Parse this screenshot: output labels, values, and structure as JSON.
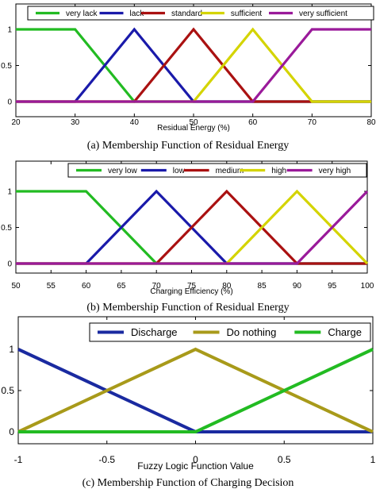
{
  "chart_data": [
    {
      "type": "line",
      "xlabel": "Residual Energy (%)",
      "caption": "(a) Membership Function of Residual Energy",
      "xlim": [
        20,
        80
      ],
      "ylim": [
        0,
        1
      ],
      "xticks": [
        "20",
        "30",
        "40",
        "50",
        "60",
        "70",
        "80"
      ],
      "yticks": [
        "0",
        "0.5",
        "1"
      ],
      "legend_position": "top",
      "series": [
        {
          "name": "very lack",
          "color": "#22bb22",
          "x": [
            20,
            30,
            40,
            80
          ],
          "y": [
            1,
            1,
            0,
            0
          ]
        },
        {
          "name": "lack",
          "color": "#1a1aaa",
          "x": [
            20,
            30,
            40,
            50,
            80
          ],
          "y": [
            0,
            0,
            1,
            0,
            0
          ]
        },
        {
          "name": "standard",
          "color": "#aa1111",
          "x": [
            20,
            40,
            50,
            60,
            80
          ],
          "y": [
            0,
            0,
            1,
            0,
            0
          ]
        },
        {
          "name": "sufficient",
          "color": "#d4d400",
          "x": [
            20,
            50,
            60,
            70,
            80
          ],
          "y": [
            0,
            0,
            1,
            0,
            0
          ]
        },
        {
          "name": "very sufficient",
          "color": "#9a1a9a",
          "x": [
            20,
            60,
            70,
            80
          ],
          "y": [
            0,
            0,
            1,
            1
          ]
        }
      ]
    },
    {
      "type": "line",
      "xlabel": "Charging Efficiency (%)",
      "caption": "(b) Membership Function of Residual Energy",
      "xlim": [
        50,
        100
      ],
      "ylim": [
        0,
        1
      ],
      "xticks": [
        "50",
        "55",
        "60",
        "65",
        "70",
        "75",
        "80",
        "85",
        "90",
        "95",
        "100"
      ],
      "yticks": [
        "0",
        "0.5",
        "1"
      ],
      "legend_position": "top",
      "series": [
        {
          "name": "very low",
          "color": "#22bb22",
          "x": [
            50,
            60,
            70,
            100
          ],
          "y": [
            1,
            1,
            0,
            0
          ]
        },
        {
          "name": "low",
          "color": "#1a1aaa",
          "x": [
            50,
            60,
            70,
            80,
            100
          ],
          "y": [
            0,
            0,
            1,
            0,
            0
          ]
        },
        {
          "name": "medium",
          "color": "#aa1111",
          "x": [
            50,
            70,
            80,
            90,
            100
          ],
          "y": [
            0,
            0,
            1,
            0,
            0
          ]
        },
        {
          "name": "high",
          "color": "#d4d400",
          "x": [
            50,
            80,
            90,
            100
          ],
          "y": [
            0,
            0,
            1,
            0
          ]
        },
        {
          "name": "very high",
          "color": "#9a1a9a",
          "x": [
            50,
            90,
            100
          ],
          "y": [
            0,
            0,
            1
          ]
        }
      ]
    },
    {
      "type": "line",
      "xlabel": "Fuzzy Logic Function Value",
      "caption": "(c) Membership Function of Charging Decision",
      "xlim": [
        -1,
        1
      ],
      "ylim": [
        0,
        1
      ],
      "xticks": [
        "-1",
        "-0.5",
        "0",
        "0.5",
        "1"
      ],
      "yticks": [
        "0",
        "0.5",
        "1"
      ],
      "legend_position": "top",
      "series": [
        {
          "name": "Discharge",
          "color": "#1a2aa0",
          "x": [
            -1,
            0,
            1
          ],
          "y": [
            1,
            0,
            0
          ]
        },
        {
          "name": "Do nothing",
          "color": "#a89a1a",
          "x": [
            -1,
            0,
            1
          ],
          "y": [
            0,
            1,
            0
          ]
        },
        {
          "name": "Charge",
          "color": "#22bb22",
          "x": [
            -1,
            0,
            1
          ],
          "y": [
            0,
            0,
            1
          ]
        }
      ]
    }
  ]
}
